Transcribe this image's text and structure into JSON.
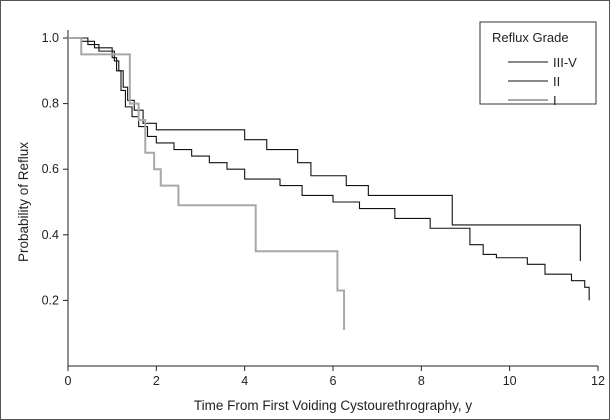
{
  "chart_data": {
    "type": "line",
    "step": true,
    "xlabel": "Time From First Voiding Cystourethrography, y",
    "ylabel": "Probability of Reflux",
    "xlim": [
      0,
      12
    ],
    "ylim": [
      0,
      1.0
    ],
    "xticks": [
      0,
      2,
      4,
      6,
      8,
      10,
      12
    ],
    "yticks": [
      0.2,
      0.4,
      0.6,
      0.8,
      1.0
    ],
    "grid": false,
    "legend": {
      "title": "Reflux Grade",
      "placement": "top-right"
    },
    "series": [
      {
        "name": "III-V",
        "color": "#111111",
        "x": [
          0,
          0.45,
          0.7,
          1.05,
          1.15,
          1.25,
          1.35,
          1.5,
          1.7,
          2.0,
          2.35,
          4.0,
          4.5,
          5.2,
          5.5,
          6.3,
          6.8,
          8.7,
          11.6
        ],
        "y": [
          1.0,
          0.98,
          0.96,
          0.93,
          0.9,
          0.85,
          0.81,
          0.78,
          0.74,
          0.72,
          0.72,
          0.69,
          0.66,
          0.62,
          0.58,
          0.55,
          0.52,
          0.43,
          0.32
        ]
      },
      {
        "name": "II",
        "color": "#111111",
        "x": [
          0,
          0.3,
          0.6,
          1.0,
          1.1,
          1.2,
          1.3,
          1.45,
          1.6,
          1.8,
          2.0,
          2.4,
          2.8,
          3.2,
          3.6,
          4.0,
          4.8,
          5.3,
          6.0,
          6.6,
          7.4,
          8.2,
          9.1,
          9.4,
          9.7,
          10.4,
          10.8,
          11.4,
          11.7,
          11.8
        ],
        "y": [
          1.0,
          0.99,
          0.97,
          0.94,
          0.9,
          0.84,
          0.79,
          0.76,
          0.73,
          0.7,
          0.68,
          0.66,
          0.64,
          0.62,
          0.6,
          0.57,
          0.55,
          0.52,
          0.5,
          0.48,
          0.45,
          0.42,
          0.37,
          0.34,
          0.33,
          0.31,
          0.28,
          0.26,
          0.24,
          0.2
        ]
      },
      {
        "name": "I",
        "color": "#a8a8a8",
        "x": [
          0,
          0.2,
          0.3,
          1.25,
          1.4,
          1.6,
          1.75,
          1.95,
          2.1,
          2.5,
          4.0,
          4.25,
          6.0,
          6.1,
          6.2,
          6.25
        ],
        "y": [
          1.0,
          1.0,
          0.95,
          0.95,
          0.8,
          0.75,
          0.65,
          0.6,
          0.55,
          0.49,
          0.49,
          0.35,
          0.35,
          0.23,
          0.23,
          0.11
        ]
      }
    ]
  }
}
